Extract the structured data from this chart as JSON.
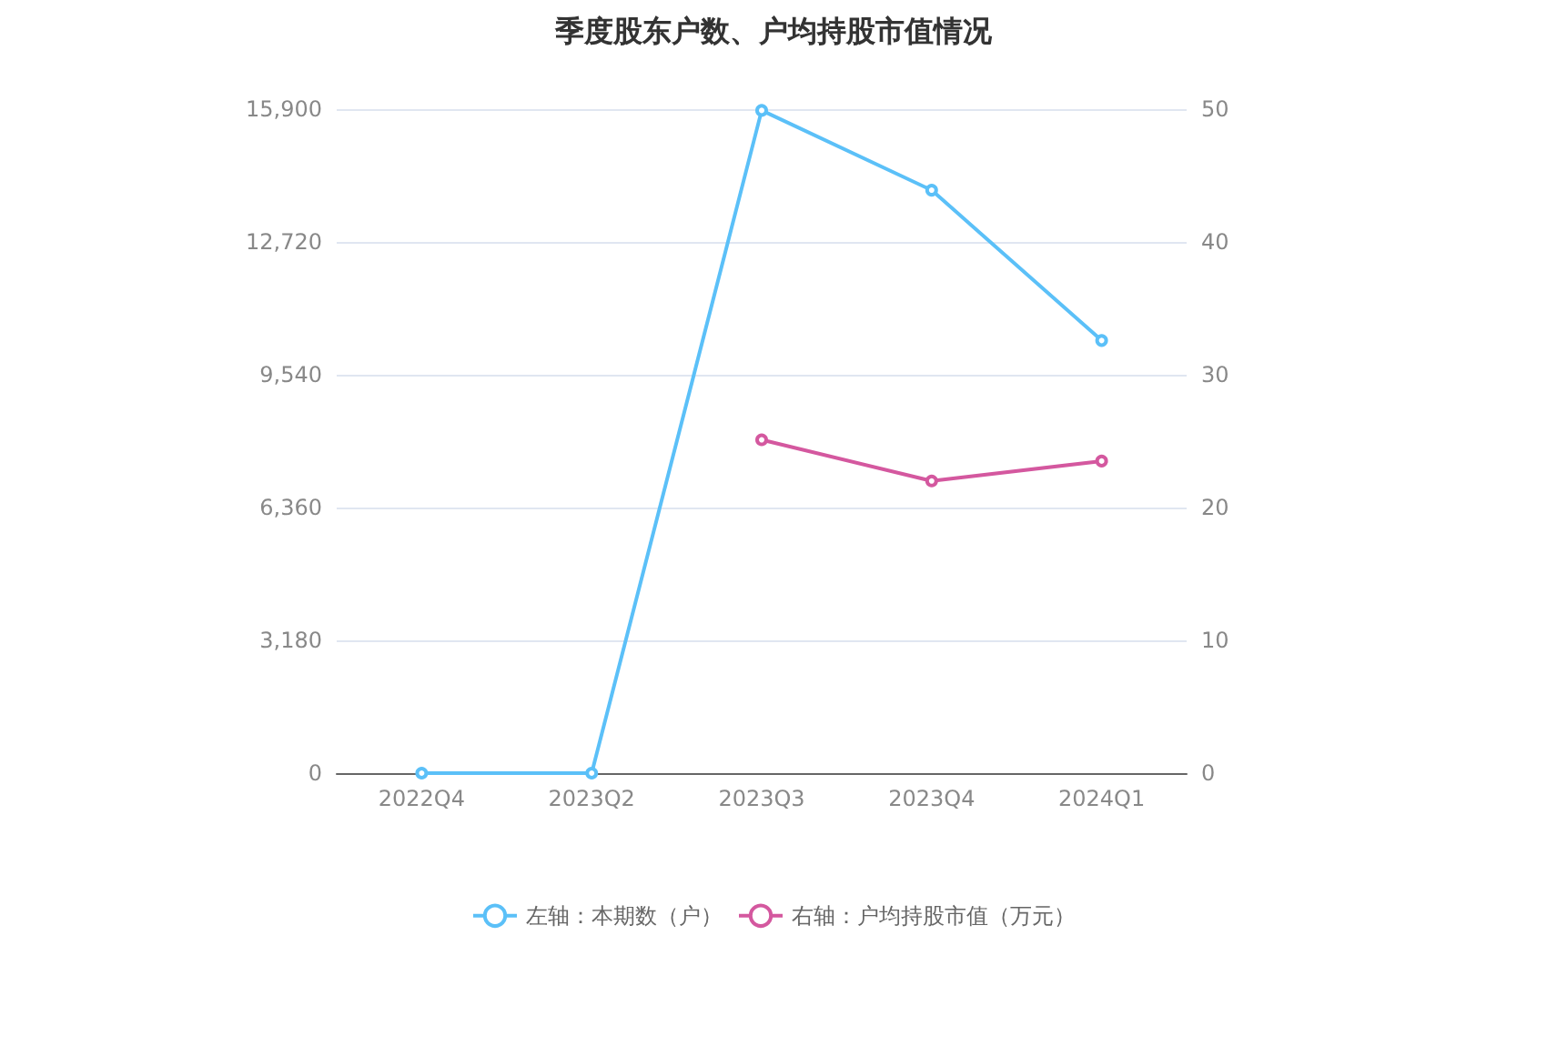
{
  "chart_data": {
    "type": "line",
    "title": "季度股东户数、户均持股市值情况",
    "categories": [
      "2022Q4",
      "2023Q2",
      "2023Q3",
      "2023Q4",
      "2024Q1"
    ],
    "series": [
      {
        "name": "左轴：本期数（户）",
        "color": "#5bc0f8",
        "values": [
          0,
          0,
          15870,
          13960,
          10360
        ]
      },
      {
        "name": "右轴：户均持股市值（万元）",
        "color": "#d4589f",
        "axis": "y2",
        "values": [
          null,
          null,
          25.1,
          22.0,
          23.5
        ]
      }
    ],
    "ylim": [
      0,
      15900
    ],
    "yticks": [
      0,
      {
        "value": 3180,
        "label": "3,180"
      },
      {
        "value": 6360,
        "label": "6,360"
      },
      {
        "value": 9540,
        "label": "9,540"
      },
      {
        "value": 12720,
        "label": "12,720"
      },
      {
        "value": 15900,
        "label": "15,900"
      }
    ],
    "y2lim": [
      0,
      50
    ],
    "y2ticks": [
      0,
      10,
      20,
      30,
      40,
      50
    ],
    "grid": "y",
    "legend": "bottom",
    "marker": "circle",
    "line_style": "solid"
  }
}
